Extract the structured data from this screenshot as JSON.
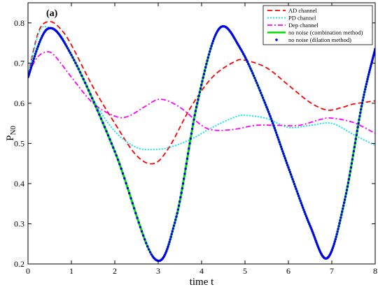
{
  "chart_data": {
    "type": "line",
    "panel_label": "(a)",
    "xlabel": "time t",
    "ylabel_main": "P",
    "ylabel_sub": "N0",
    "xlim": [
      0,
      8
    ],
    "ylim": [
      0.2,
      0.85
    ],
    "xticks": [
      "0",
      "1",
      "2",
      "3",
      "4",
      "5",
      "6",
      "7",
      "8"
    ],
    "yticks": [
      "0.2",
      "0.3",
      "0.4",
      "0.5",
      "0.6",
      "0.7",
      "0.8"
    ],
    "legend_position": "top-right",
    "series": [
      {
        "name": "AD channel",
        "style": "dashed",
        "color": "#ff0000",
        "x": [
          0,
          0.25,
          0.5,
          0.75,
          1,
          1.5,
          2,
          2.5,
          2.9,
          3.25,
          3.75,
          4.25,
          4.75,
          5.0,
          5.5,
          6.0,
          6.5,
          6.9,
          7.25,
          7.5,
          8.0
        ],
        "y": [
          0.67,
          0.78,
          0.803,
          0.785,
          0.745,
          0.64,
          0.55,
          0.47,
          0.45,
          0.49,
          0.59,
          0.665,
          0.703,
          0.707,
          0.688,
          0.645,
          0.602,
          0.583,
          0.59,
          0.598,
          0.606
        ]
      },
      {
        "name": "PD channel",
        "style": "dotted",
        "color": "#00e5ee",
        "x": [
          0,
          0.25,
          0.45,
          0.75,
          1.0,
          1.5,
          2.0,
          2.5,
          2.9,
          3.25,
          3.75,
          4.25,
          4.75,
          5.0,
          5.5,
          6.0,
          6.5,
          7.0,
          7.5,
          8.0
        ],
        "y": [
          0.67,
          0.775,
          0.79,
          0.77,
          0.72,
          0.61,
          0.53,
          0.49,
          0.485,
          0.49,
          0.51,
          0.54,
          0.565,
          0.57,
          0.562,
          0.54,
          0.545,
          0.55,
          0.522,
          0.495
        ]
      },
      {
        "name": "Dep channel",
        "style": "dashdot",
        "color": "#ff00ff",
        "x": [
          0,
          0.2,
          0.4,
          0.6,
          1.0,
          1.5,
          2.0,
          2.3,
          2.7,
          3.05,
          3.5,
          4.0,
          4.3,
          4.75,
          5.25,
          5.75,
          6.25,
          6.75,
          7.0,
          7.5,
          8.0
        ],
        "y": [
          0.67,
          0.712,
          0.727,
          0.72,
          0.665,
          0.6,
          0.568,
          0.567,
          0.592,
          0.61,
          0.59,
          0.545,
          0.533,
          0.535,
          0.545,
          0.545,
          0.545,
          0.56,
          0.563,
          0.552,
          0.525
        ]
      },
      {
        "name": "no noise (combination method)",
        "style": "solid",
        "color": "#00dd00",
        "x": [
          0,
          0.45,
          1.0,
          2.0,
          2.9,
          3.4,
          3.9,
          4.4,
          4.9,
          5.5,
          6.0,
          6.5,
          6.9,
          7.3,
          7.7,
          8.0
        ],
        "y": [
          0.665,
          0.785,
          0.72,
          0.48,
          0.215,
          0.31,
          0.6,
          0.785,
          0.735,
          0.59,
          0.44,
          0.295,
          0.215,
          0.36,
          0.6,
          0.735
        ]
      },
      {
        "name": "no noise (dilation method)",
        "style": "markers",
        "color": "#0000ee",
        "x": [
          0,
          0.45,
          1.0,
          2.0,
          2.9,
          3.4,
          3.9,
          4.4,
          4.9,
          5.5,
          6.0,
          6.5,
          6.9,
          7.3,
          7.7,
          8.0
        ],
        "y": [
          0.665,
          0.785,
          0.72,
          0.48,
          0.215,
          0.31,
          0.6,
          0.785,
          0.735,
          0.59,
          0.44,
          0.295,
          0.215,
          0.36,
          0.6,
          0.735
        ]
      }
    ]
  }
}
